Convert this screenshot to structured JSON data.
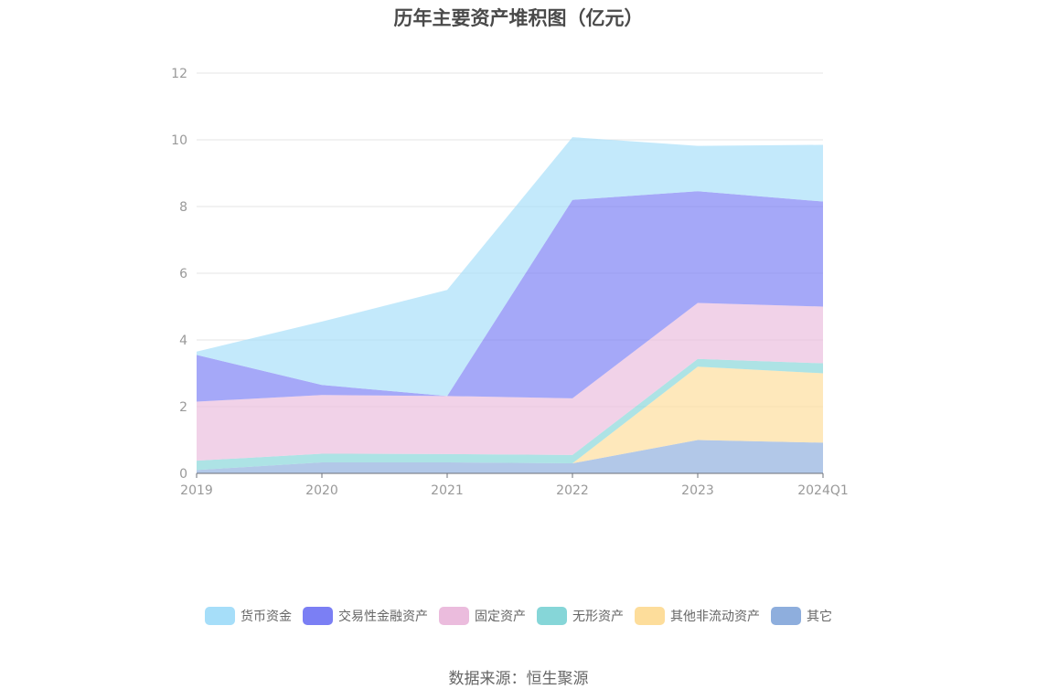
{
  "chart_data": {
    "type": "area",
    "stacked": true,
    "title": "历年主要资产堆积图（亿元）",
    "xlabel": "",
    "ylabel": "",
    "categories": [
      "2019",
      "2020",
      "2021",
      "2022",
      "2023",
      "2024Q1"
    ],
    "ylim": [
      0,
      12
    ],
    "yticks": [
      0,
      2,
      4,
      6,
      8,
      10,
      12
    ],
    "grid": true,
    "legend_position": "bottom",
    "series": [
      {
        "name": "其它",
        "color": "#8eaedd",
        "values": [
          0.1,
          0.33,
          0.33,
          0.3,
          1.0,
          0.92
        ]
      },
      {
        "name": "其他非流动资产",
        "color": "#fddd9b",
        "values": [
          0.0,
          0.0,
          0.0,
          0.0,
          2.2,
          2.08
        ]
      },
      {
        "name": "无形资产",
        "color": "#86d6d8",
        "values": [
          0.28,
          0.26,
          0.25,
          0.25,
          0.23,
          0.3
        ]
      },
      {
        "name": "固定资产",
        "color": "#ebbcdd",
        "values": [
          1.77,
          1.76,
          1.74,
          1.7,
          1.68,
          1.7
        ]
      },
      {
        "name": "交易性金融资产",
        "color": "#7b7ff4",
        "values": [
          1.4,
          0.3,
          0.0,
          5.95,
          3.35,
          3.15
        ]
      },
      {
        "name": "货币资金",
        "color": "#a6def9",
        "values": [
          0.1,
          1.9,
          3.18,
          1.88,
          1.36,
          1.7
        ]
      }
    ]
  },
  "legend_order": [
    "货币资金",
    "交易性金融资产",
    "固定资产",
    "无形资产",
    "其他非流动资产",
    "其它"
  ],
  "source_text": "数据来源：恒生聚源"
}
